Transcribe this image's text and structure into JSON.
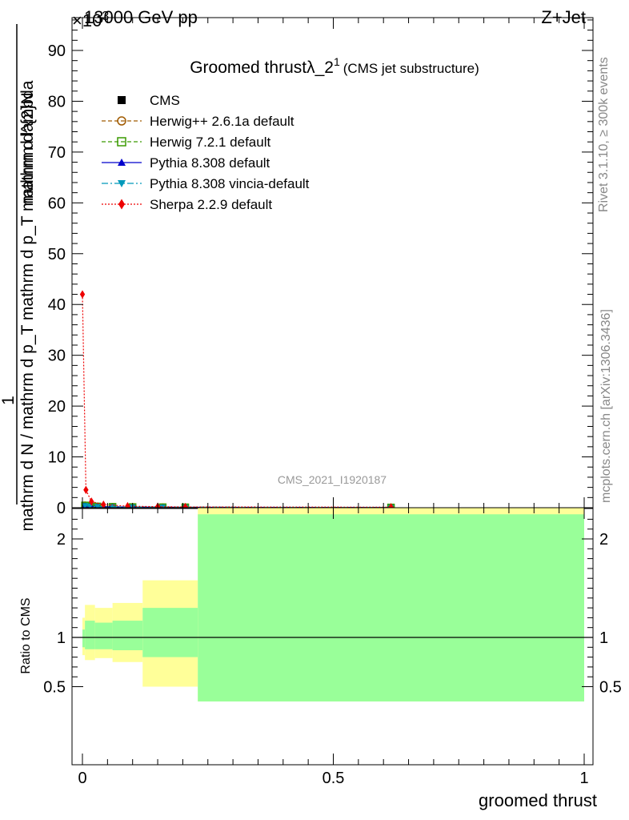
{
  "header": {
    "energy": "13000 GeV pp",
    "process": "Z+Jet",
    "exponent": "×10",
    "exponent_power": "3"
  },
  "side_labels": {
    "rivet": "Rivet 3.1.10, ≥ 300k events",
    "mcplots": "mcplots.cern.ch [arXiv:1306.3436]"
  },
  "chart_data": [
    {
      "type": "scatter",
      "title": "Groomed thrust",
      "title_symbol": "λ_2",
      "title_sup": "1",
      "subtitle": "(CMS jet substructure)",
      "watermark": "CMS_2021_I1920187",
      "ylabel_lines": [
        "1",
        "mathrm d N / mathrm d p_T mathrm d p_T mathrm d lambda",
        "mathrm d^2N / mathrm d p_T mathrm d lambda"
      ],
      "ylabel_top": "mathrm d^{2}N",
      "ylabel_mid": "mathrm d p_T mathrm d p_T mathrm d lambda",
      "ylabel_num": "1",
      "ylabel_den": "mathrm d N / mathrm d p_T mathrm d p_T mathrm d lambda",
      "ylim": [
        0,
        95
      ],
      "y_ticks": [
        0,
        10,
        20,
        30,
        40,
        50,
        60,
        70,
        80,
        90
      ],
      "y_tick_labels": [
        "0",
        "10",
        "20",
        "30",
        "40",
        "50",
        "60",
        "70",
        "80",
        "90"
      ],
      "xlim": [
        -0.01,
        1.0
      ],
      "legend_position": "top-left",
      "series": [
        {
          "name": "CMS",
          "color": "#000000",
          "marker": "square-filled",
          "line": "none",
          "x": [
            0.005,
            0.015,
            0.03,
            0.06,
            0.1,
            0.16,
            0.205,
            0.615
          ],
          "y": [
            0.35,
            0.3,
            0.2,
            0.15,
            0.12,
            0.1,
            0.08,
            0.05
          ]
        },
        {
          "name": "Herwig++ 2.6.1a default",
          "color": "#a05a00",
          "marker": "circle-open",
          "line": "dashed",
          "x": [
            0.005,
            0.015,
            0.03,
            0.06,
            0.1,
            0.16,
            0.205,
            0.615
          ],
          "y": [
            0.5,
            0.35,
            0.25,
            0.18,
            0.13,
            0.1,
            0.08,
            0.05
          ]
        },
        {
          "name": "Herwig 7.2.1 default",
          "color": "#3a9a00",
          "marker": "square-open",
          "line": "dashed",
          "x": [
            0.005,
            0.015,
            0.03,
            0.06,
            0.1,
            0.16,
            0.205,
            0.615
          ],
          "y": [
            0.45,
            0.35,
            0.25,
            0.18,
            0.13,
            0.1,
            0.08,
            0.05
          ]
        },
        {
          "name": "Pythia 8.308 default",
          "color": "#0000cc",
          "marker": "triangle-up",
          "line": "solid",
          "x": [
            0.005,
            0.015,
            0.03,
            0.06,
            0.1,
            0.16,
            0.205,
            0.615
          ],
          "y": [
            0.4,
            0.3,
            0.22,
            0.16,
            0.12,
            0.1,
            0.08,
            0.05
          ]
        },
        {
          "name": "Pythia 8.308 vincia-default",
          "color": "#0099bb",
          "marker": "triangle-down",
          "line": "dashdot",
          "x": [
            0.005,
            0.015,
            0.03,
            0.06,
            0.1,
            0.16,
            0.205,
            0.615
          ],
          "y": [
            0.4,
            0.3,
            0.22,
            0.16,
            0.12,
            0.1,
            0.08,
            0.05
          ]
        },
        {
          "name": "Sherpa 2.2.9 default",
          "color": "#ee0000",
          "marker": "diamond",
          "line": "dotted",
          "x": [
            0.0,
            0.007,
            0.018,
            0.042,
            0.09,
            0.15,
            0.205,
            0.615
          ],
          "y": [
            42,
            3.5,
            1.2,
            0.6,
            0.3,
            0.2,
            0.15,
            0.1
          ]
        }
      ]
    },
    {
      "type": "area",
      "ylabel": "Ratio to CMS",
      "xlabel": "groomed thrust",
      "xlim": [
        -0.01,
        1.0
      ],
      "ylim": [
        0.35,
        2.25
      ],
      "y_ticks": [
        0.5,
        1,
        2
      ],
      "y_tick_labels": [
        "0.5",
        "1",
        "2"
      ],
      "x_ticks": [
        0,
        0.5,
        1
      ],
      "x_tick_labels": [
        "0",
        "0.5",
        "1"
      ],
      "reference_line": 1,
      "bins": [
        {
          "x0": 0.0,
          "x1": 0.005,
          "stat_lo": 0.9,
          "stat_hi": 1.08,
          "tot_lo": 0.82,
          "tot_hi": 1.2
        },
        {
          "x0": 0.005,
          "x1": 0.025,
          "stat_lo": 0.88,
          "stat_hi": 1.17,
          "tot_lo": 0.77,
          "tot_hi": 1.33
        },
        {
          "x0": 0.025,
          "x1": 0.06,
          "stat_lo": 0.88,
          "stat_hi": 1.15,
          "tot_lo": 0.79,
          "tot_hi": 1.3
        },
        {
          "x0": 0.06,
          "x1": 0.12,
          "stat_lo": 0.87,
          "stat_hi": 1.17,
          "tot_lo": 0.75,
          "tot_hi": 1.35
        },
        {
          "x0": 0.12,
          "x1": 0.23,
          "stat_lo": 0.8,
          "stat_hi": 1.3,
          "tot_lo": 0.5,
          "tot_hi": 1.58
        },
        {
          "x0": 0.23,
          "x1": 1.0,
          "stat_lo": 0.35,
          "stat_hi": 2.25,
          "tot_lo": 0.35,
          "tot_hi": 2.4
        }
      ],
      "colors": {
        "stat_band": "#99ff99",
        "total_band": "#ffff99"
      }
    }
  ]
}
